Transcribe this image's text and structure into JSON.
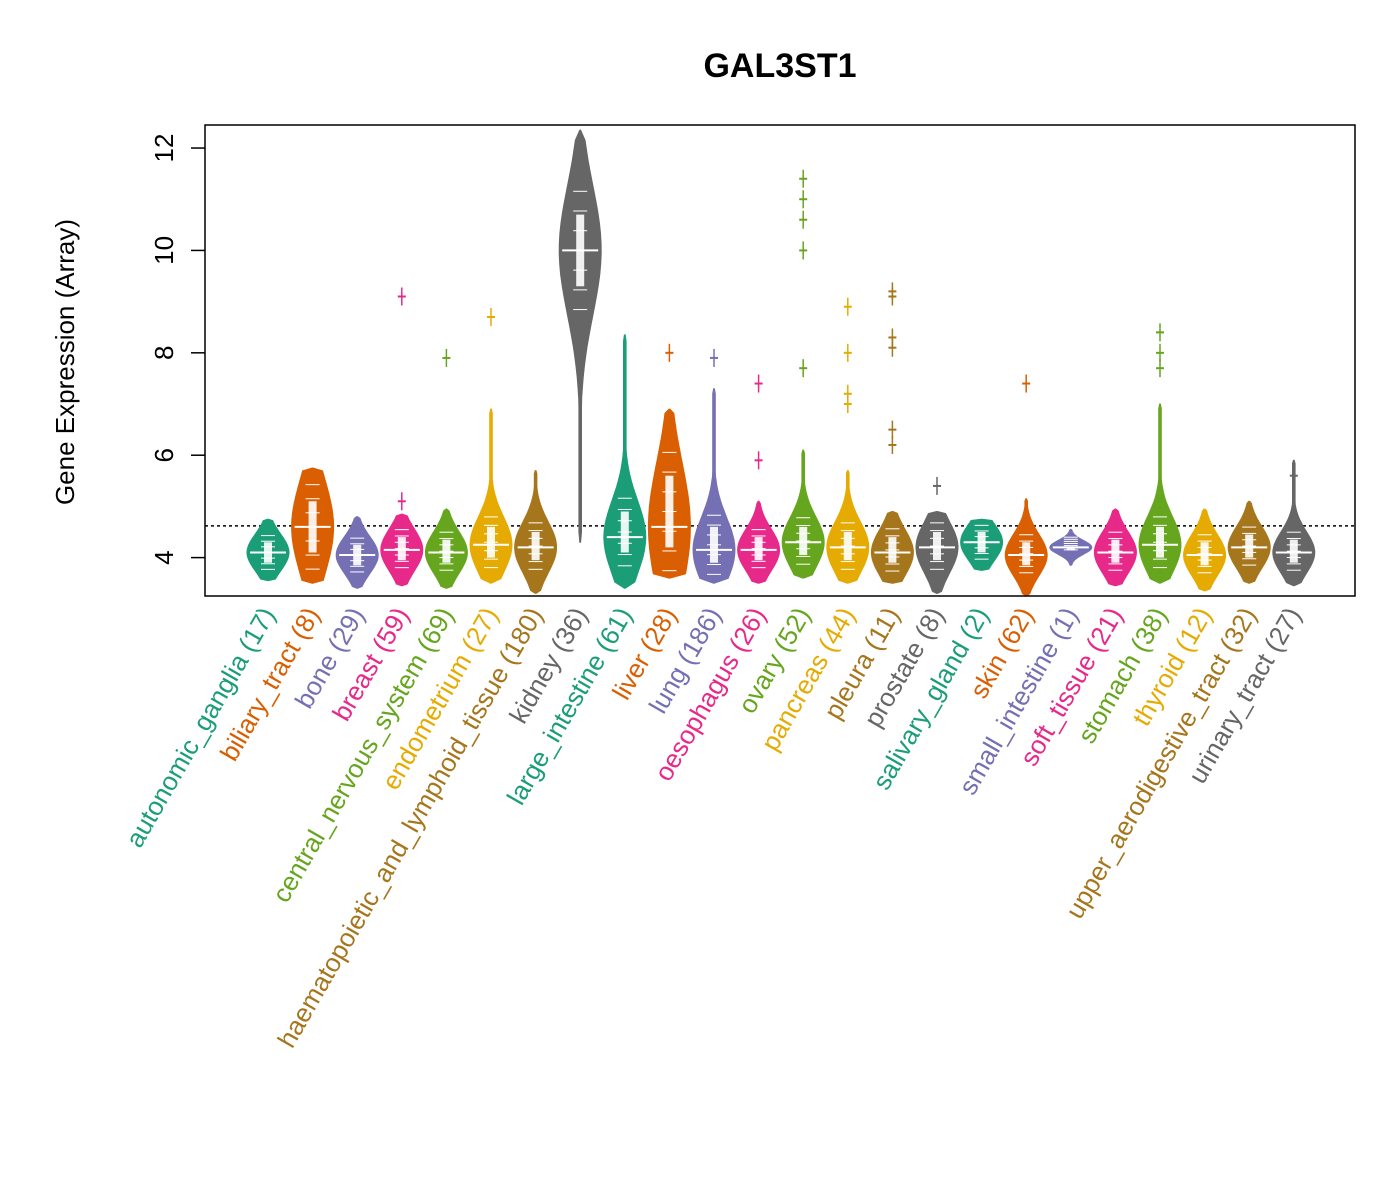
{
  "chart_data": {
    "type": "violin",
    "title": "GAL3ST1",
    "xlabel": "",
    "ylabel": "Gene Expression (Array)",
    "ylim": [
      3.25,
      12.45
    ],
    "yticks": [
      4,
      6,
      8,
      10,
      12
    ],
    "reference_line": 4.62,
    "categories": [
      {
        "label": "autonomic_ganglia (17)",
        "color": "#1B9E77",
        "median": 4.1,
        "q1": 3.9,
        "q3": 4.3,
        "min": 3.55,
        "max": 4.75,
        "outliers": []
      },
      {
        "label": "biliary_tract (8)",
        "color": "#D95F02",
        "median": 4.6,
        "q1": 4.1,
        "q3": 5.1,
        "min": 3.5,
        "max": 5.75,
        "outliers": []
      },
      {
        "label": "bone (29)",
        "color": "#7570B3",
        "median": 4.05,
        "q1": 3.85,
        "q3": 4.25,
        "min": 3.4,
        "max": 4.8,
        "outliers": []
      },
      {
        "label": "breast (59)",
        "color": "#E7298A",
        "median": 4.15,
        "q1": 3.95,
        "q3": 4.4,
        "min": 3.45,
        "max": 4.85,
        "outliers": [
          5.1,
          9.1
        ]
      },
      {
        "label": "central_nervous_system (69)",
        "color": "#66A61E",
        "median": 4.1,
        "q1": 3.9,
        "q3": 4.35,
        "min": 3.4,
        "max": 4.95,
        "outliers": [
          7.9
        ]
      },
      {
        "label": "endometrium (27)",
        "color": "#E6AB02",
        "median": 4.25,
        "q1": 4.0,
        "q3": 4.6,
        "min": 3.5,
        "max": 6.9,
        "outliers": [
          8.7
        ]
      },
      {
        "label": "haematopoietic_and_lymphoid_tissue (180)",
        "color": "#A6761D",
        "median": 4.2,
        "q1": 3.95,
        "q3": 4.5,
        "min": 3.3,
        "max": 5.7,
        "outliers": []
      },
      {
        "label": "kidney (36)",
        "color": "#666666",
        "median": 10.0,
        "q1": 9.3,
        "q3": 10.7,
        "min": 4.3,
        "max": 12.35,
        "outliers": []
      },
      {
        "label": "large_intestine (61)",
        "color": "#1B9E77",
        "median": 4.4,
        "q1": 4.1,
        "q3": 4.9,
        "min": 3.4,
        "max": 8.35,
        "outliers": []
      },
      {
        "label": "liver (28)",
        "color": "#D95F02",
        "median": 4.6,
        "q1": 4.2,
        "q3": 5.6,
        "min": 3.6,
        "max": 6.9,
        "outliers": [
          8.0
        ]
      },
      {
        "label": "lung (186)",
        "color": "#7570B3",
        "median": 4.15,
        "q1": 3.9,
        "q3": 4.6,
        "min": 3.5,
        "max": 7.3,
        "outliers": [
          7.9
        ]
      },
      {
        "label": "oesophagus (26)",
        "color": "#E7298A",
        "median": 4.15,
        "q1": 3.95,
        "q3": 4.4,
        "min": 3.5,
        "max": 5.1,
        "outliers": [
          5.9,
          7.4
        ]
      },
      {
        "label": "ovary (52)",
        "color": "#66A61E",
        "median": 4.3,
        "q1": 4.05,
        "q3": 4.6,
        "min": 3.6,
        "max": 6.1,
        "outliers": [
          7.7,
          10.0,
          10.6,
          11.0,
          11.4
        ]
      },
      {
        "label": "pancreas (44)",
        "color": "#E6AB02",
        "median": 4.2,
        "q1": 3.95,
        "q3": 4.5,
        "min": 3.5,
        "max": 5.7,
        "outliers": [
          7.0,
          7.2,
          8.0,
          8.9
        ]
      },
      {
        "label": "pleura (11)",
        "color": "#A6761D",
        "median": 4.1,
        "q1": 3.9,
        "q3": 4.4,
        "min": 3.5,
        "max": 4.9,
        "outliers": [
          6.2,
          6.5,
          8.1,
          8.3,
          9.1,
          9.2
        ]
      },
      {
        "label": "prostate (8)",
        "color": "#666666",
        "median": 4.2,
        "q1": 3.95,
        "q3": 4.5,
        "min": 3.3,
        "max": 4.9,
        "outliers": [
          5.4
        ]
      },
      {
        "label": "salivary_gland (2)",
        "color": "#1B9E77",
        "median": 4.3,
        "q1": 4.1,
        "q3": 4.5,
        "min": 3.75,
        "max": 4.75,
        "outliers": []
      },
      {
        "label": "skin (62)",
        "color": "#D95F02",
        "median": 4.05,
        "q1": 3.85,
        "q3": 4.3,
        "min": 3.25,
        "max": 5.15,
        "outliers": [
          7.4
        ]
      },
      {
        "label": "small_intestine (1)",
        "color": "#7570B3",
        "median": 4.2,
        "q1": 4.2,
        "q3": 4.2,
        "min": 3.85,
        "max": 4.55,
        "outliers": []
      },
      {
        "label": "soft_tissue (21)",
        "color": "#E7298A",
        "median": 4.1,
        "q1": 3.9,
        "q3": 4.35,
        "min": 3.45,
        "max": 4.95,
        "outliers": []
      },
      {
        "label": "stomach (38)",
        "color": "#66A61E",
        "median": 4.25,
        "q1": 4.0,
        "q3": 4.6,
        "min": 3.5,
        "max": 7.0,
        "outliers": [
          7.7,
          8.0,
          8.4
        ]
      },
      {
        "label": "thyroid (12)",
        "color": "#E6AB02",
        "median": 4.05,
        "q1": 3.85,
        "q3": 4.3,
        "min": 3.35,
        "max": 4.95,
        "outliers": []
      },
      {
        "label": "upper_aerodigestive_tract (32)",
        "color": "#A6761D",
        "median": 4.2,
        "q1": 4.0,
        "q3": 4.45,
        "min": 3.5,
        "max": 5.1,
        "outliers": []
      },
      {
        "label": "urinary_tract (27)",
        "color": "#666666",
        "median": 4.1,
        "q1": 3.9,
        "q3": 4.35,
        "min": 3.45,
        "max": 5.9,
        "outliers": [
          5.6
        ]
      }
    ]
  }
}
